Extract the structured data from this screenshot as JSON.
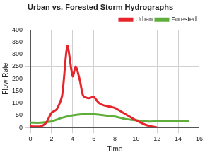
{
  "chart_data": {
    "type": "line",
    "title": "Urban vs. Forested Storm Hydrographs",
    "x_label": "Time",
    "y_label": "Flow Rate",
    "xlim": [
      0,
      16
    ],
    "xticks": [
      0,
      2,
      4,
      6,
      8,
      10,
      12,
      14,
      16
    ],
    "ylim": [
      0,
      400
    ],
    "yticks": [
      0,
      50,
      100,
      150,
      200,
      250,
      300,
      350,
      400
    ],
    "grid": true,
    "legend": "upper right",
    "series": [
      {
        "name": "Urban",
        "color": "#e8242b",
        "x": [
          0,
          1,
          1.5,
          2,
          2.5,
          3,
          3.5,
          4,
          4.3,
          4.7,
          5,
          5.5,
          6,
          6.5,
          7,
          8,
          9,
          10,
          11,
          12
        ],
        "values": [
          5,
          5,
          20,
          60,
          75,
          130,
          335,
          210,
          250,
          190,
          130,
          120,
          125,
          100,
          90,
          80,
          55,
          30,
          10,
          0
        ]
      },
      {
        "name": "Forested",
        "color": "#5fae3c",
        "x": [
          0,
          1,
          2,
          3,
          4,
          5,
          6,
          7,
          8,
          9,
          10,
          11,
          12,
          13,
          14,
          15
        ],
        "values": [
          20,
          20,
          25,
          40,
          50,
          55,
          55,
          50,
          45,
          35,
          30,
          25,
          25,
          25,
          25,
          25
        ]
      }
    ]
  }
}
